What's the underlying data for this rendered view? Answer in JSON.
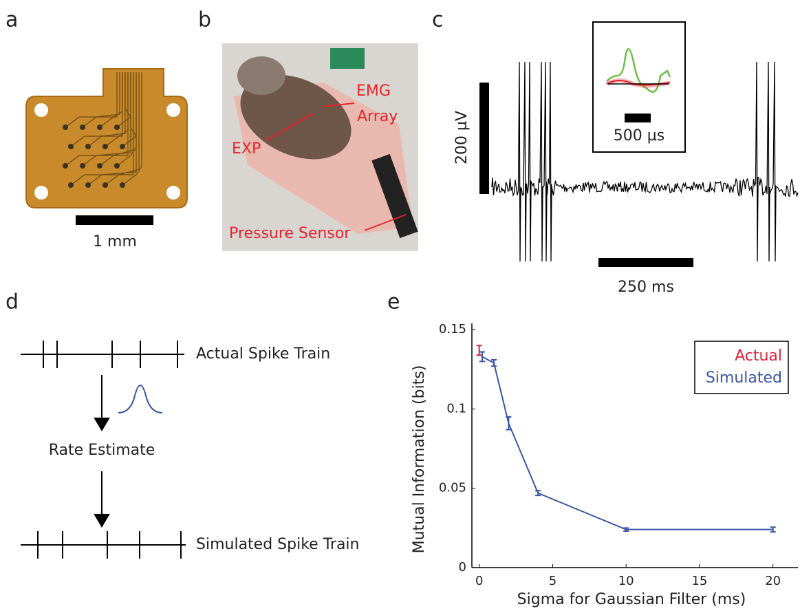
{
  "panels": {
    "a": {
      "letter": "a",
      "scale_label": "1 mm"
    },
    "b": {
      "letter": "b",
      "labels": [
        "EMG",
        "Array",
        "EXP",
        "Pressure Sensor"
      ]
    },
    "c": {
      "letter": "c",
      "amp_scale": "200 µV",
      "inset_scale": "500 µs",
      "time_scale": "250 ms"
    },
    "d": {
      "letter": "d",
      "top": "Actual Spike Train",
      "middle": "Rate Estimate",
      "bottom": "Simulated Spike Train"
    },
    "e": {
      "letter": "e"
    }
  },
  "chart_data": {
    "type": "errorline",
    "xlabel": "Sigma for Gaussian Filter (ms)",
    "ylabel": "Mutual Information (bits)",
    "xlim": [
      -0.5,
      21.7
    ],
    "ylim": [
      0,
      0.154
    ],
    "xticks": [
      0,
      5,
      10,
      15,
      20
    ],
    "yticks": [
      0,
      0.05,
      0.1,
      0.15
    ],
    "series": [
      {
        "name": "Actual",
        "color": "#e0233c",
        "x": [
          0
        ],
        "values": [
          0.137
        ],
        "errors": [
          0.003
        ]
      },
      {
        "name": "Simulated",
        "color": "#3a55a6",
        "x": [
          0.2,
          1,
          2,
          4,
          10,
          20
        ],
        "values": [
          0.133,
          0.129,
          0.091,
          0.047,
          0.024,
          0.024
        ],
        "errors": [
          0.003,
          0.002,
          0.004,
          0.0015,
          0.001,
          0.0015
        ]
      }
    ]
  }
}
